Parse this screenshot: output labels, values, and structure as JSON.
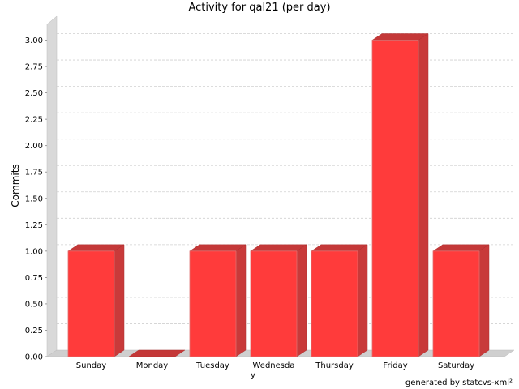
{
  "chart_data": {
    "type": "bar",
    "title": "Activity for qal21 (per day)",
    "xlabel": "",
    "ylabel": "Commits",
    "categories": [
      "Sunday",
      "Monday",
      "Tuesday",
      "Wednesday",
      "Thursday",
      "Friday",
      "Saturday"
    ],
    "values": [
      1,
      0,
      1,
      1,
      1,
      3,
      1
    ],
    "ylim": [
      0,
      3.15
    ],
    "yticks": [
      "0.00",
      "0.25",
      "0.50",
      "0.75",
      "1.00",
      "1.25",
      "1.50",
      "1.75",
      "2.00",
      "2.25",
      "2.50",
      "2.75",
      "3.00"
    ],
    "grid": true,
    "bar_color": "#ff3b3b",
    "bar_side_color": "#c83a3a",
    "bar_top_color": "#c43838"
  },
  "footer": {
    "credit": "generated by statcvs-xml²"
  }
}
